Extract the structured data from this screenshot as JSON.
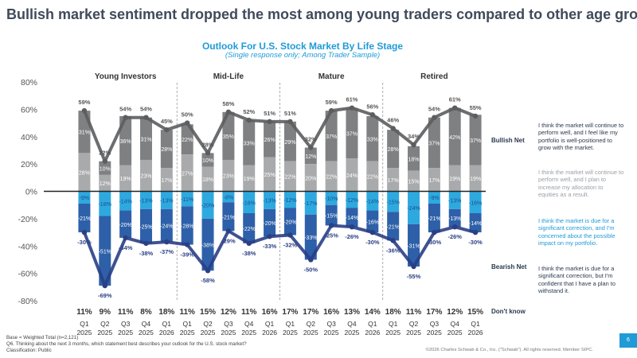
{
  "page_title": "Bullish market sentiment dropped the most among young traders compared to other age groups.",
  "legend": {
    "bullish_net": "Bullish Net",
    "bearish_net": "Bearish Net",
    "dont_know": "Don't know",
    "descriptions": [
      {
        "text": "I think the market will continue to perform well, and I feel like my portfolio is well-positioned to grow with the market.",
        "color": "#2a3a4e"
      },
      {
        "text": "I think the market will continue to perform well, and I plan to increase my allocation to equities as a result.",
        "color": "#9aa0a6"
      },
      {
        "text": "I think the market is due for a significant correction, and I'm concerned about the possible impact on my portfolio.",
        "color": "#1f9bd7"
      },
      {
        "text": "I think the market is due for a significant correction, but I'm confident that I have a plan to withstand it.",
        "color": "#2a3a4e"
      }
    ]
  },
  "footer": {
    "base": "Base = Weighted Total (n=2,121)",
    "question": "Q6. Thinking about the next 3 months, which statement best describes your outlook for the U.S. stock market?",
    "classification": "Classification: Public",
    "copyright": "©2026 Charles Schwab & Co., Inc. (\"Schwab\"). All rights reserved. Member SIPC.",
    "page_number": "6"
  },
  "colors": {
    "dark_gray": "#7f8082",
    "light_gray": "#a9aaac",
    "light_blue": "#2ea9e0",
    "dark_blue": "#2d60a8",
    "bull_line": "#5c5d5f",
    "bear_line": "#2a3f85",
    "title": "#404a5a",
    "accent": "#1f9bd7"
  },
  "chart_data": {
    "type": "bar",
    "title": "Outlook For U.S. Stock Market By Life Stage",
    "subtitle": "(Single response only; Among Trader Sample)",
    "ylim": [
      -80,
      80
    ],
    "yticks": [
      "80%",
      "60%",
      "40%",
      "20%",
      "0%",
      "-20%",
      "-40%",
      "-60%",
      "-80%"
    ],
    "groups": [
      "Young Investors",
      "Mid-Life",
      "Mature",
      "Retired"
    ],
    "group_sizes": [
      5,
      5,
      5,
      5
    ],
    "categories": [
      "Q1 2025",
      "Q2 2025",
      "Q3 2025",
      "Q4 2025",
      "Q1 2026",
      "Q1 2025",
      "Q2 2025",
      "Q3 2025",
      "Q4 2025",
      "Q1 2026",
      "Q1 2025",
      "Q2 2025",
      "Q3 2025",
      "Q4 2025",
      "Q1 2026",
      "Q1 2025",
      "Q2 2025",
      "Q3 2025",
      "Q4 2025",
      "Q1 2026"
    ],
    "dont_know": [
      "11%",
      "9%",
      "11%",
      "8%",
      "18%",
      "11%",
      "15%",
      "12%",
      "11%",
      "16%",
      "17%",
      "17%",
      "16%",
      "13%",
      "14%",
      "18%",
      "11%",
      "17%",
      "12%",
      "15%"
    ],
    "series": [
      {
        "name": "I think the market will continue to perform well, and I feel like my portfolio is well-positioned to grow with the market.",
        "values": [
          31,
          10,
          36,
          31,
          28,
          22,
          10,
          35,
          33,
          26,
          29,
          12,
          37,
          37,
          33,
          28,
          18,
          37,
          42,
          37
        ]
      },
      {
        "name": "I think the market will continue to perform well, and I plan to increase my allocation to equities as a result.",
        "values": [
          28,
          12,
          19,
          23,
          17,
          27,
          18,
          23,
          19,
          25,
          22,
          20,
          22,
          24,
          22,
          17,
          15,
          17,
          19,
          19
        ]
      },
      {
        "name": "I think the market is due for a significant correction, and I'm concerned about the possible impact on my portfolio.",
        "values": [
          -9,
          -18,
          -14,
          -13,
          -13,
          -11,
          -20,
          -8,
          -16,
          -13,
          -12,
          -17,
          -10,
          -12,
          -14,
          -15,
          -24,
          -9,
          -13,
          -16
        ]
      },
      {
        "name": "I think the market is due for a significant correction, but I'm confident that I have a plan to withstand it.",
        "values": [
          -21,
          -51,
          -20,
          -25,
          -24,
          -28,
          -38,
          -21,
          -22,
          -20,
          -20,
          -33,
          -15,
          -14,
          -16,
          -21,
          -31,
          -21,
          -13,
          -14
        ]
      }
    ],
    "bullish_net": [
      59,
      22,
      54,
      54,
      45,
      50,
      28,
      58,
      52,
      51,
      51,
      32,
      59,
      61,
      56,
      46,
      34,
      54,
      61,
      55
    ],
    "bearish_net": [
      -30,
      -69,
      -34,
      -38,
      -37,
      -39,
      -58,
      -29,
      -38,
      -33,
      -32,
      -50,
      -25,
      -26,
      -30,
      -36,
      -55,
      -30,
      -26,
      -30
    ],
    "bullish_net_labels": [
      "59%",
      "22%",
      "54%",
      "54%",
      "45%",
      "50%",
      "28%",
      "58%",
      "52%",
      "51%",
      "51%",
      "32%",
      "59%",
      "61%",
      "56%",
      "46%",
      "34%",
      "54%",
      "61%",
      "55%"
    ],
    "bearish_net_labels": [
      "-30%",
      "-69%",
      "-34%",
      "-38%",
      "-37%",
      "-39%",
      "-58%",
      "-29%",
      "-38%",
      "-33%",
      "-32%",
      "-50%",
      "-25%",
      "-26%",
      "-30%",
      "-36%",
      "-55%",
      "-30%",
      "-26%",
      "-30%"
    ],
    "segment_labels": [
      [
        "31%",
        "10%",
        "36%",
        "31%",
        "28%",
        "22%",
        "10%",
        "35%",
        "33%",
        "26%",
        "29%",
        "12%",
        "37%",
        "37%",
        "33%",
        "28%",
        "18%",
        "37%",
        "42%",
        "37%"
      ],
      [
        "28%",
        "12%",
        "19%",
        "23%",
        "17%",
        "27%",
        "18%",
        "23%",
        "19%",
        "25%",
        "22%",
        "20%",
        "22%",
        "24%",
        "22%",
        "17%",
        "15%",
        "17%",
        "19%",
        "19%"
      ],
      [
        "-9%",
        "-18%",
        "-14%",
        "-13%",
        "-13%",
        "-11%",
        "-20%",
        "-8%",
        "-16%",
        "-13%",
        "-12%",
        "-17%",
        "-10%",
        "-12%",
        "-14%",
        "-15%",
        "-24%",
        "-9%",
        "-13%",
        "-16%"
      ],
      [
        "-21%",
        "-51%",
        "-20%",
        "-25%",
        "-24%",
        "-28%",
        "-38%",
        "-21%",
        "-22%",
        "-20%",
        "-20%",
        "-33%",
        "-15%",
        "-14%",
        "-16%",
        "-21%",
        "-31%",
        "-21%",
        "-13%",
        "-14%"
      ]
    ],
    "grid": false,
    "legend_position": "right"
  }
}
